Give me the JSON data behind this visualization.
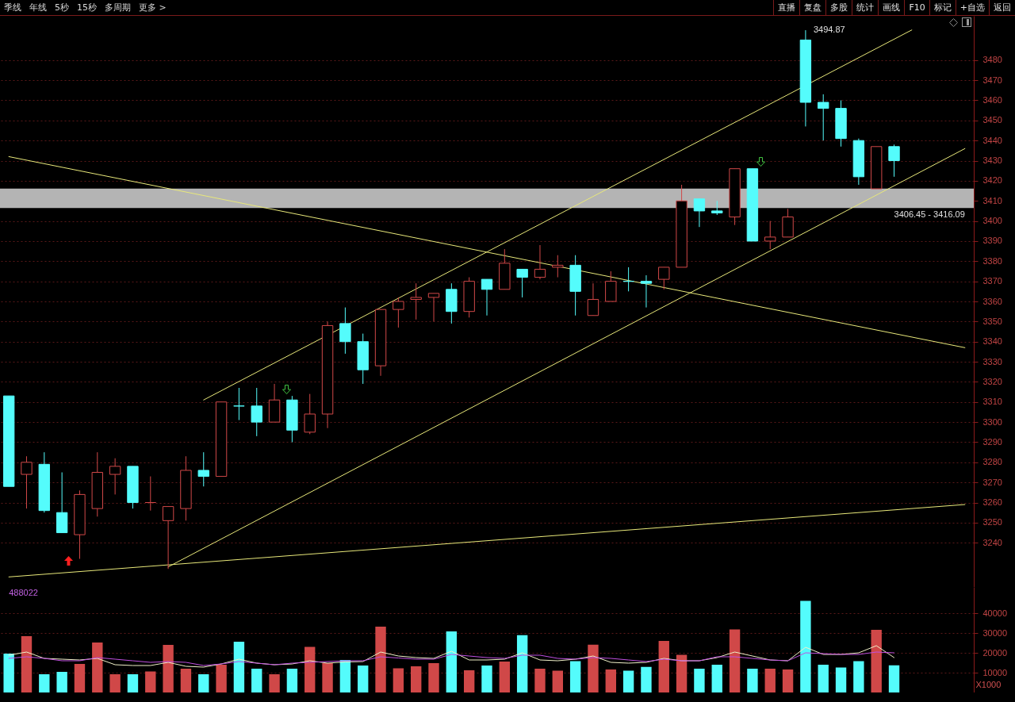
{
  "chart_data": [
    {
      "type": "other",
      "annotations": [
        "季线",
        "年线",
        "5秒",
        "15秒",
        "多周期",
        "更多 >"
      ]
    },
    {
      "type": "other",
      "annotations": [
        "直播",
        "复盘",
        "多股",
        "统计",
        "画线",
        "F10",
        "标记",
        "+自选",
        "返回"
      ]
    },
    {
      "type": "candlestick",
      "categories": [
        null,
        null,
        null,
        null,
        null,
        null,
        null,
        null,
        null,
        null,
        null,
        null,
        null,
        null,
        null,
        null,
        null,
        null,
        null,
        null,
        null,
        null,
        null,
        null,
        null,
        null,
        null,
        null,
        null,
        null,
        null,
        null,
        null,
        null,
        null,
        null,
        null,
        null,
        null,
        null,
        null,
        null,
        null,
        null,
        null,
        null,
        null,
        null,
        null,
        null,
        null,
        null,
        null,
        null,
        null
      ],
      "ohlc": [
        [
          3313,
          3313,
          3268,
          3268
        ],
        [
          3274,
          3283,
          3257,
          3280
        ],
        [
          3279,
          3285,
          3255,
          3256
        ],
        [
          3255,
          3275,
          3245,
          3245
        ],
        [
          3244,
          3266,
          3232,
          3264
        ],
        [
          3257,
          3285,
          3253,
          3275
        ],
        [
          3274,
          3282,
          3264,
          3278
        ],
        [
          3278,
          3278,
          3257,
          3260
        ],
        [
          3260,
          3273,
          3256,
          3260
        ],
        [
          3251,
          3258,
          3227,
          3258
        ],
        [
          3257,
          3283,
          3251,
          3276
        ],
        [
          3276,
          3285,
          3268,
          3273
        ],
        [
          3273,
          3310,
          3273,
          3310
        ],
        [
          3308,
          3317,
          3301,
          3308
        ],
        [
          3308,
          3317,
          3293,
          3300
        ],
        [
          3300,
          3319,
          3300,
          3311
        ],
        [
          3311,
          3313,
          3290,
          3296
        ],
        [
          3295,
          3314,
          3294,
          3304
        ],
        [
          3304,
          3350,
          3297,
          3348
        ],
        [
          3349,
          3357,
          3334,
          3340
        ],
        [
          3340,
          3344,
          3319,
          3326
        ],
        [
          3328,
          3356,
          3323,
          3356
        ],
        [
          3356,
          3362,
          3347,
          3360
        ],
        [
          3361,
          3369,
          3351,
          3362
        ],
        [
          3362,
          3364,
          3350,
          3364
        ],
        [
          3366,
          3369,
          3349,
          3355
        ],
        [
          3355,
          3372,
          3352,
          3370
        ],
        [
          3371,
          3371,
          3353,
          3366
        ],
        [
          3366,
          3386,
          3366,
          3379
        ],
        [
          3376,
          3376,
          3362,
          3372
        ],
        [
          3372,
          3388,
          3371,
          3376
        ],
        [
          3377,
          3383,
          3372,
          3378
        ],
        [
          3378,
          3383,
          3353,
          3365
        ],
        [
          3353,
          3369,
          3353,
          3361
        ],
        [
          3360,
          3375,
          3360,
          3370
        ],
        [
          3370,
          3377,
          3365,
          3370
        ],
        [
          3370,
          3373,
          3357,
          3369
        ],
        [
          3371,
          3377,
          3366,
          3377
        ],
        [
          3377,
          3418,
          3377,
          3410
        ],
        [
          3411,
          3411,
          3397,
          3405
        ],
        [
          3405,
          3410,
          3403,
          3404
        ],
        [
          3402,
          3426,
          3398,
          3426
        ],
        [
          3426,
          3426,
          3390,
          3390
        ],
        [
          3390,
          3400,
          3386,
          3392
        ],
        [
          3392,
          3406,
          3392,
          3402
        ],
        [
          3490,
          3494.87,
          3447,
          3459
        ],
        [
          3459,
          3463,
          3440,
          3456
        ],
        [
          3456,
          3460,
          3437,
          3441
        ],
        [
          3440,
          3441,
          3418,
          3422
        ],
        [
          3416,
          3437,
          3416,
          3437
        ],
        [
          3437,
          3438,
          3422,
          3430
        ],
        null,
        null,
        null,
        null
      ],
      "colors": [
        "#54fcfc",
        "#d04848",
        "#54fcfc",
        "#54fcfc",
        "#d04848",
        "#d04848",
        "#d04848",
        "#54fcfc",
        "#d04848",
        "#d04848",
        "#d04848",
        "#54fcfc",
        "#d04848",
        "#54fcfc",
        "#54fcfc",
        "#d04848",
        "#54fcfc",
        "#d04848",
        "#d04848",
        "#54fcfc",
        "#54fcfc",
        "#d04848",
        "#d04848",
        "#d04848",
        "#d04848",
        "#54fcfc",
        "#d04848",
        "#54fcfc",
        "#d04848",
        "#54fcfc",
        "#d04848",
        "#d04848",
        "#54fcfc",
        "#d04848",
        "#d04848",
        "#54fcfc",
        "#54fcfc",
        "#d04848",
        "#d04848",
        "#54fcfc",
        "#54fcfc",
        "#d04848",
        "#54fcfc",
        "#d04848",
        "#d04848",
        "#54fcfc",
        "#54fcfc",
        "#54fcfc",
        "#54fcfc",
        "#d04848",
        "#54fcfc",
        null,
        null,
        null,
        null
      ],
      "series": [
        {
          "type": "line",
          "color": "#e8e87a",
          "values": [
            null,
            null,
            null,
            null,
            null,
            null,
            null,
            null,
            null,
            null,
            null,
            3311,
            null,
            null,
            null,
            null,
            null,
            null,
            null,
            null,
            null,
            null,
            null,
            null,
            null,
            null,
            null,
            null,
            null,
            null,
            null,
            null,
            null,
            null,
            null,
            null,
            null,
            null,
            null,
            null,
            null,
            null,
            null,
            null,
            null,
            null,
            null,
            null,
            null,
            null,
            null,
            3495,
            null,
            null,
            null
          ]
        },
        {
          "type": "line",
          "color": "#e8e87a",
          "values": [
            null,
            null,
            null,
            null,
            null,
            null,
            null,
            null,
            null,
            3228,
            null,
            null,
            null,
            null,
            null,
            null,
            null,
            null,
            null,
            null,
            null,
            null,
            null,
            null,
            null,
            null,
            null,
            null,
            null,
            null,
            null,
            null,
            null,
            null,
            null,
            null,
            null,
            null,
            null,
            null,
            null,
            null,
            null,
            null,
            null,
            null,
            null,
            null,
            null,
            null,
            null,
            null,
            null,
            null,
            3436
          ]
        },
        {
          "type": "line",
          "color": "#e8e87a",
          "values": [
            3432,
            null,
            null,
            null,
            null,
            null,
            null,
            null,
            null,
            null,
            null,
            null,
            null,
            null,
            null,
            null,
            null,
            null,
            null,
            null,
            null,
            null,
            null,
            null,
            null,
            null,
            null,
            null,
            null,
            null,
            null,
            null,
            null,
            null,
            null,
            null,
            null,
            null,
            null,
            null,
            null,
            null,
            null,
            null,
            null,
            null,
            null,
            null,
            null,
            null,
            null,
            null,
            null,
            null,
            3337
          ]
        },
        {
          "type": "line",
          "color": "#e8e87a",
          "values": [
            3223,
            null,
            null,
            null,
            null,
            null,
            null,
            null,
            null,
            null,
            null,
            null,
            null,
            null,
            null,
            null,
            null,
            null,
            null,
            null,
            null,
            null,
            null,
            null,
            null,
            null,
            null,
            null,
            null,
            null,
            null,
            null,
            null,
            null,
            null,
            null,
            null,
            null,
            null,
            null,
            null,
            null,
            null,
            null,
            null,
            null,
            null,
            null,
            null,
            null,
            null,
            null,
            null,
            null,
            3259
          ]
        }
      ],
      "bands": [
        {
          "axis": "y",
          "from": 3406.45,
          "to": 3416.09,
          "label": "3406.45 - 3416.09",
          "color": "#b4b4b4"
        }
      ],
      "annotations": [
        "3494.87"
      ],
      "ylim": [
        3218,
        3502
      ],
      "yticks": [
        3240,
        3250,
        3260,
        3270,
        3280,
        3290,
        3300,
        3310,
        3320,
        3330,
        3340,
        3350,
        3360,
        3370,
        3380,
        3390,
        3400,
        3410,
        3420,
        3430,
        3440,
        3450,
        3460,
        3470,
        3480
      ],
      "grid": "y"
    },
    {
      "type": "bar",
      "categories": [
        null,
        null,
        null,
        null,
        null,
        null,
        null,
        null,
        null,
        null,
        null,
        null,
        null,
        null,
        null,
        null,
        null,
        null,
        null,
        null,
        null,
        null,
        null,
        null,
        null,
        null,
        null,
        null,
        null,
        null,
        null,
        null,
        null,
        null,
        null,
        null,
        null,
        null,
        null,
        null,
        null,
        null,
        null,
        null,
        null,
        null,
        null,
        null,
        null,
        null,
        null
      ],
      "values": [
        19600,
        28400,
        9200,
        10400,
        14400,
        25200,
        9200,
        9200,
        10600,
        24000,
        12000,
        9200,
        14000,
        25600,
        12000,
        9200,
        12000,
        23000,
        14800,
        16400,
        13600,
        33200,
        12200,
        13200,
        14800,
        30800,
        11200,
        13600,
        15600,
        28900,
        12000,
        11000,
        15800,
        24100,
        11600,
        11000,
        12900,
        26000,
        19000,
        12000,
        14000,
        31800,
        12000,
        12000,
        11600,
        46200,
        14000,
        12600,
        15800,
        31600,
        13700
      ],
      "colors": [
        "#54fcfc",
        "#d04848",
        "#54fcfc",
        "#54fcfc",
        "#d04848",
        "#d04848",
        "#d04848",
        "#54fcfc",
        "#d04848",
        "#d04848",
        "#d04848",
        "#54fcfc",
        "#d04848",
        "#54fcfc",
        "#54fcfc",
        "#d04848",
        "#54fcfc",
        "#d04848",
        "#d04848",
        "#54fcfc",
        "#54fcfc",
        "#d04848",
        "#d04848",
        "#d04848",
        "#d04848",
        "#54fcfc",
        "#d04848",
        "#54fcfc",
        "#d04848",
        "#54fcfc",
        "#d04848",
        "#d04848",
        "#54fcfc",
        "#d04848",
        "#d04848",
        "#54fcfc",
        "#54fcfc",
        "#d04848",
        "#d04848",
        "#54fcfc",
        "#54fcfc",
        "#d04848",
        "#54fcfc",
        "#d04848",
        "#d04848",
        "#54fcfc",
        "#54fcfc",
        "#54fcfc",
        "#54fcfc",
        "#d04848",
        "#54fcfc"
      ],
      "series": [
        {
          "type": "line",
          "color": "#f0f0c8",
          "values": [
            18800,
            20400,
            17200,
            16800,
            16400,
            17200,
            14000,
            13600,
            13600,
            15200,
            13200,
            12800,
            14400,
            16800,
            14800,
            14000,
            14400,
            16000,
            14800,
            15400,
            15600,
            20400,
            18400,
            17600,
            17200,
            20800,
            16400,
            16400,
            16800,
            20000,
            16400,
            16000,
            16800,
            18400,
            15200,
            14800,
            15200,
            17200,
            16000,
            16000,
            17600,
            20400,
            18400,
            16400,
            16000,
            22800,
            19200,
            19200,
            20000,
            23600,
            17600
          ]
        },
        {
          "type": "line",
          "color": "#c050e0",
          "values": [
            17200,
            18000,
            17200,
            16000,
            16000,
            17600,
            16800,
            16000,
            15200,
            15600,
            15200,
            13600,
            14400,
            15600,
            14800,
            14000,
            14800,
            15200,
            15600,
            16000,
            16000,
            18000,
            17400,
            16800,
            16800,
            19200,
            18400,
            17600,
            17200,
            18800,
            18800,
            17200,
            16800,
            17600,
            17200,
            16400,
            15600,
            16800,
            16000,
            16000,
            18000,
            18000,
            17200,
            16400,
            16000,
            20000,
            19600,
            19200,
            19200,
            20400,
            20000
          ]
        }
      ],
      "ylabel": "X1000",
      "annotations": [
        "488022"
      ],
      "ylim": [
        0,
        53200
      ],
      "yticks": [
        10000,
        20000,
        30000,
        40000
      ],
      "grid": "y"
    }
  ]
}
